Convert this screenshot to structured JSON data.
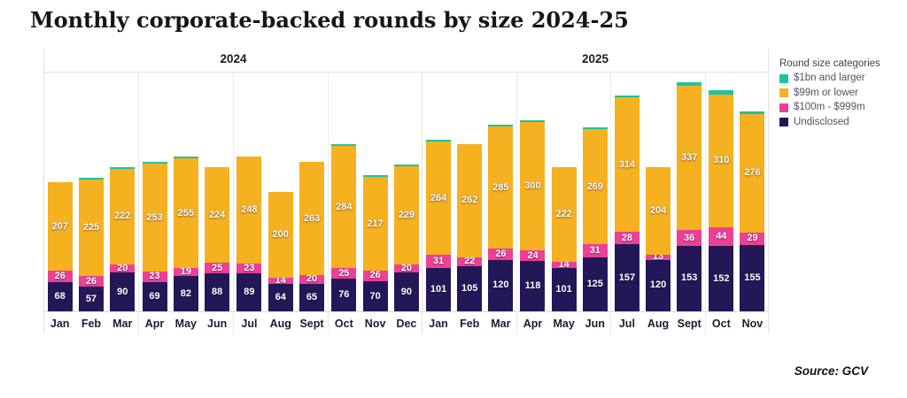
{
  "title": "Monthly corporate-backed rounds by size 2024-25",
  "source": "Source: GCV",
  "legend": {
    "title": "Round size categories",
    "items": [
      {
        "label": "$1bn and larger",
        "color": "#1dc3a1"
      },
      {
        "label": "$99m or lower",
        "color": "#f5b120"
      },
      {
        "label": "$100m - $999m",
        "color": "#ee3f97"
      },
      {
        "label": "Undisclosed",
        "color": "#241758"
      }
    ]
  },
  "chart_data": {
    "type": "bar",
    "stacked": true,
    "orientation": "vertical",
    "legend_position": "right",
    "gridlines": "vertical-quarter-separators",
    "ylim": [
      0,
      560
    ],
    "panels": [
      {
        "year": "2024",
        "months": [
          "Jan",
          "Feb",
          "Mar",
          "Apr",
          "May",
          "Jun",
          "Jul",
          "Aug",
          "Sept",
          "Oct",
          "Nov",
          "Dec"
        ]
      },
      {
        "year": "2025",
        "months": [
          "Jan",
          "Feb",
          "Mar",
          "Apr",
          "May",
          "Jun",
          "Jul",
          "Aug",
          "Sept",
          "Oct",
          "Nov"
        ]
      }
    ],
    "stack_order_bottom_to_top": [
      "Undisclosed",
      "$100m - $999m",
      "$99m or lower",
      "$1bn and larger"
    ],
    "series": [
      {
        "name": "Undisclosed",
        "color": "#241758",
        "labels_shown": true,
        "values": [
          68,
          57,
          90,
          69,
          82,
          88,
          89,
          64,
          65,
          76,
          70,
          90,
          101,
          105,
          120,
          118,
          101,
          125,
          157,
          120,
          153,
          152,
          155
        ]
      },
      {
        "name": "$100m - $999m",
        "color": "#ee3f97",
        "labels_shown": true,
        "values": [
          26,
          26,
          20,
          23,
          19,
          25,
          23,
          14,
          20,
          25,
          26,
          20,
          31,
          22,
          26,
          24,
          14,
          31,
          28,
          13,
          36,
          44,
          29
        ]
      },
      {
        "name": "$99m or lower",
        "color": "#f5b120",
        "labels_shown": true,
        "values": [
          207,
          225,
          222,
          253,
          255,
          224,
          248,
          200,
          263,
          284,
          217,
          229,
          264,
          262,
          285,
          300,
          222,
          269,
          314,
          204,
          337,
          310,
          276
        ]
      },
      {
        "name": "$1bn and larger",
        "color": "#1dc3a1",
        "labels_shown": false,
        "values_estimated": true,
        "values": [
          0,
          3,
          3,
          4,
          4,
          0,
          0,
          0,
          0,
          4,
          3,
          3,
          3,
          0,
          4,
          4,
          0,
          4,
          5,
          0,
          8,
          10,
          6
        ]
      }
    ]
  }
}
